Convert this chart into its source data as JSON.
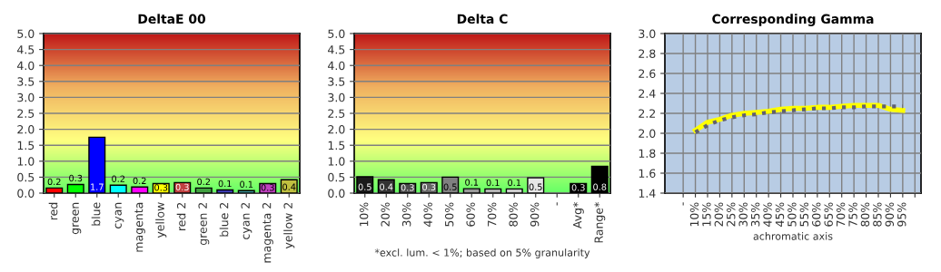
{
  "chart_data": [
    {
      "type": "bar",
      "title": "DeltaE 00",
      "categories": [
        "red",
        "green",
        "blue",
        "cyan",
        "magenta",
        "yellow",
        "red 2",
        "green 2",
        "blue 2",
        "cyan 2",
        "magenta 2",
        "yellow 2"
      ],
      "values": [
        0.16,
        0.27,
        1.75,
        0.25,
        0.19,
        0.3,
        0.33,
        0.16,
        0.1,
        0.08,
        0.3,
        0.42
      ],
      "colors": [
        "#ff0000",
        "#00ff00",
        "#0000ff",
        "#00ffff",
        "#ff00ff",
        "#ffff00",
        "#c04040",
        "#40a040",
        "#4040c0",
        "#40a0a0",
        "#c040c0",
        "#c0c040"
      ],
      "value_labels": [
        "0.2",
        "0.3",
        "1.7",
        "0.2",
        "0.2",
        "0.3",
        "0.3",
        "0.2",
        "0.1",
        "0.1",
        "0.3",
        "0.4"
      ],
      "ylim": [
        0,
        5
      ],
      "yticks": [
        {
          "value": 0,
          "label": "0.0"
        },
        {
          "value": 0.5,
          "label": "0.5"
        },
        {
          "value": 1,
          "label": "1.0"
        },
        {
          "value": 1.5,
          "label": "1.5"
        },
        {
          "value": 2,
          "label": "2.0"
        },
        {
          "value": 2.5,
          "label": "2.5"
        },
        {
          "value": 3,
          "label": "3.0"
        },
        {
          "value": 3.5,
          "label": "3.5"
        },
        {
          "value": 4,
          "label": "4.0"
        },
        {
          "value": 4.5,
          "label": "4.5"
        },
        {
          "value": 5,
          "label": "5.0"
        }
      ],
      "grid": "y",
      "legend": false
    },
    {
      "type": "bar",
      "title": "Delta C",
      "xlabel": "*excl. lum. < 1%; based on 5% granularity",
      "categories": [
        "10%",
        "20%",
        "30%",
        "40%",
        "50%",
        "60%",
        "70%",
        "80%",
        "90%",
        "-",
        "Avg*",
        "Range*"
      ],
      "values": [
        0.51,
        0.42,
        0.3,
        0.33,
        0.5,
        0.14,
        0.13,
        0.13,
        0.48,
        null,
        0.3,
        0.84
      ],
      "colors": [
        "#1a1a1a",
        "#333333",
        "#4d4d4d",
        "#666666",
        "#808080",
        "#999999",
        "#b3b3b3",
        "#cccccc",
        "#e6e6e6",
        "#000000",
        "#000000",
        "#000000"
      ],
      "value_labels": [
        "0.5",
        "0.4",
        "0.3",
        "0.3",
        "0.5",
        "0.1",
        "0.1",
        "0.1",
        "0.5",
        null,
        "0.3",
        "0.8"
      ],
      "ylim": [
        0,
        5
      ],
      "yticks": [
        {
          "value": 0,
          "label": "0.0"
        },
        {
          "value": 0.5,
          "label": "0.5"
        },
        {
          "value": 1,
          "label": "1.0"
        },
        {
          "value": 1.5,
          "label": "1.5"
        },
        {
          "value": 2,
          "label": "2.0"
        },
        {
          "value": 2.5,
          "label": "2.5"
        },
        {
          "value": 3,
          "label": "3.0"
        },
        {
          "value": 3.5,
          "label": "3.5"
        },
        {
          "value": 4,
          "label": "4.0"
        },
        {
          "value": 4.5,
          "label": "4.5"
        },
        {
          "value": 5,
          "label": "5.0"
        }
      ],
      "grid": "y",
      "legend": false
    },
    {
      "type": "line",
      "title": "Corresponding Gamma",
      "xlabel": "achromatic axis",
      "categories": [
        "-",
        "10%",
        "15%",
        "20%",
        "25%",
        "30%",
        "35%",
        "40%",
        "45%",
        "50%",
        "55%",
        "60%",
        "65%",
        "70%",
        "75%",
        "80%",
        "85%",
        "90%",
        "95%",
        null
      ],
      "series": [
        {
          "color": "#ffff00",
          "line_style": "solid",
          "values": [
            null,
            2.03,
            2.11,
            2.14,
            2.18,
            2.2,
            2.21,
            2.22,
            2.24,
            2.25,
            2.25,
            2.26,
            2.26,
            2.27,
            2.28,
            2.28,
            2.28,
            2.24,
            2.23,
            null
          ]
        },
        {
          "color": "#606070",
          "line_style": "dotted",
          "values": [
            null,
            2.01,
            2.08,
            2.13,
            2.16,
            2.18,
            2.19,
            2.21,
            2.22,
            2.23,
            2.24,
            2.25,
            2.25,
            2.26,
            2.26,
            2.27,
            2.27,
            2.27,
            2.27,
            null
          ]
        }
      ],
      "ylim": [
        1.4,
        3.0
      ],
      "yticks": [
        {
          "value": 1.4,
          "label": "1.4"
        },
        {
          "value": 1.6,
          "label": "1.6"
        },
        {
          "value": 1.8,
          "label": "1.8"
        },
        {
          "value": 2.0,
          "label": "2.0"
        },
        {
          "value": 2.2,
          "label": "2.2"
        },
        {
          "value": 2.4,
          "label": "2.4"
        },
        {
          "value": 2.6,
          "label": "2.6"
        },
        {
          "value": 2.8,
          "label": "2.8"
        },
        {
          "value": 3.0,
          "label": "3.0"
        }
      ],
      "grid": true,
      "legend": false,
      "marker": "none"
    }
  ]
}
